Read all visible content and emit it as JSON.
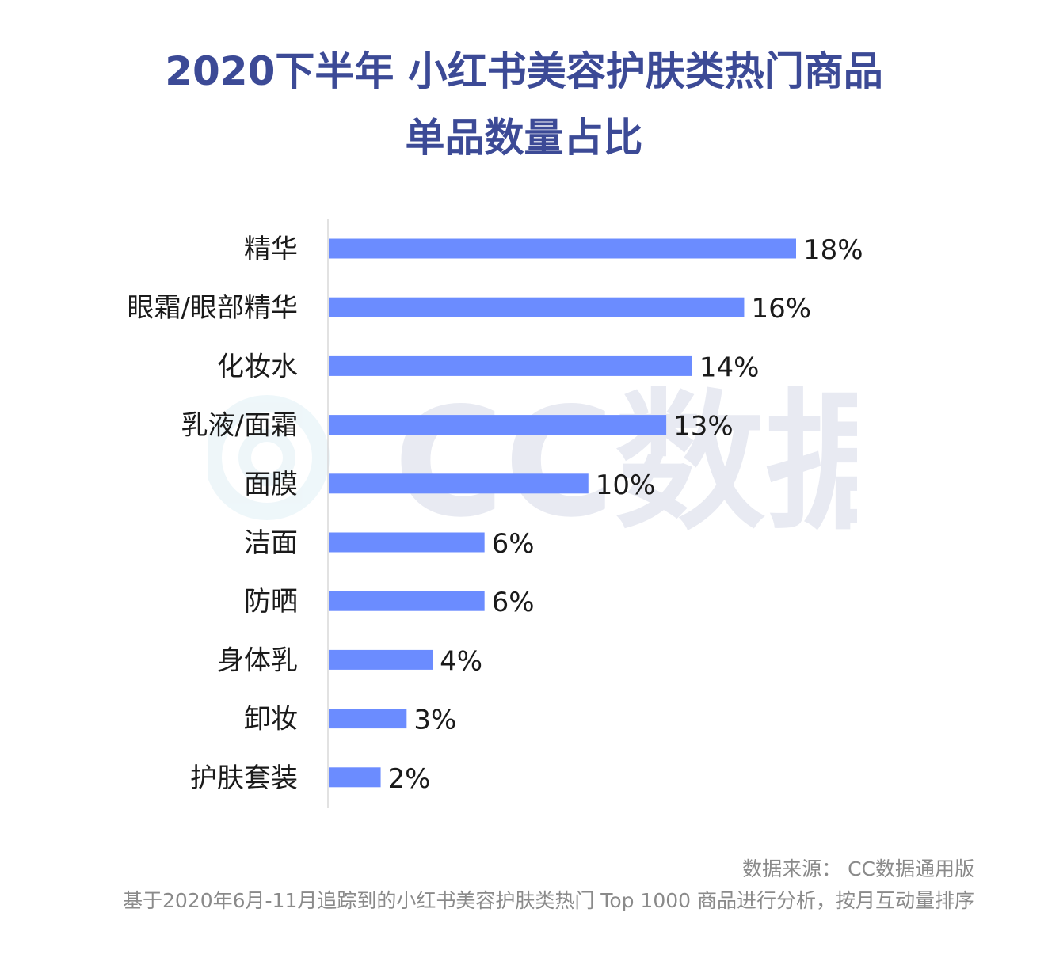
{
  "title": {
    "line1": "2020下半年 小红书美容护肤类热门商品",
    "line2": "单品数量占比"
  },
  "watermark": {
    "text": "CC数据"
  },
  "chart_data": {
    "type": "bar",
    "orientation": "horizontal",
    "categories": [
      "精华",
      "眼霜/眼部精华",
      "化妆水",
      "乳液/面霜",
      "面膜",
      "洁面",
      "防晒",
      "身体乳",
      "卸妆",
      "护肤套装"
    ],
    "values": [
      18,
      16,
      14,
      13,
      10,
      6,
      6,
      4,
      3,
      2
    ],
    "value_labels": [
      "18%",
      "16%",
      "14%",
      "13%",
      "10%",
      "6%",
      "6%",
      "4%",
      "3%",
      "2%"
    ],
    "unit": "%",
    "bar_color": "#6b8cff",
    "grid": false,
    "legend": "none"
  },
  "footer": {
    "source": "数据来源： CC数据通用版",
    "note": "基于2020年6月-11月追踪到的小红书美容护肤类热门 Top 1000 商品进行分析，按月互动量排序"
  }
}
